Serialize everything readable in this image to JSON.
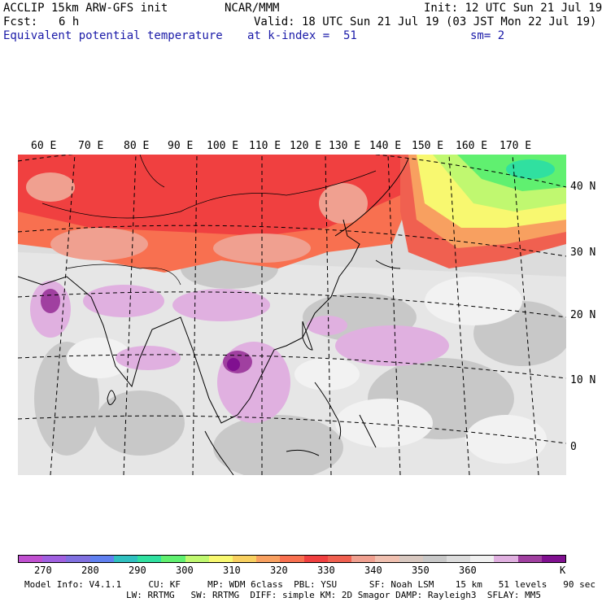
{
  "header": {
    "title_left": "ACCLIP 15km ARW-GFS init",
    "center": "NCAR/MMM",
    "init": "Init: 12 UTC Sun 21 Jul 19",
    "fcst_label": "Fcst:",
    "fcst_value": "6 h",
    "valid": "Valid: 18 UTC Sun 21 Jul 19 (03 JST Mon 22 Jul 19)",
    "field": "Equivalent potential temperature",
    "level": "at k-index =  51",
    "smooth": "sm= 2"
  },
  "map": {
    "longitude_labels": [
      "60 E",
      "70 E",
      "80 E",
      "90 E",
      "100 E",
      "110 E",
      "120 E",
      "130 E",
      "140 E",
      "150 E",
      "160 E",
      "170 E"
    ],
    "latitude_labels": [
      "40 N",
      "30 N",
      "20 N",
      "10 N",
      "0"
    ],
    "field_units": "K"
  },
  "colorbar": {
    "tick_labels": [
      "270",
      "280",
      "290",
      "300",
      "310",
      "320",
      "330",
      "340",
      "350",
      "360",
      "K"
    ],
    "colors": [
      "#c050d0",
      "#a060e0",
      "#8070e0",
      "#6080f0",
      "#30c0c0",
      "#30e0a0",
      "#60f070",
      "#c0f870",
      "#f8f870",
      "#f8d060",
      "#f8a060",
      "#f87050",
      "#f04040",
      "#f06050",
      "#f0a090",
      "#f0c0b0",
      "#d8c8c0",
      "#c8c8c8",
      "#dcdcdc",
      "#f0f0f0",
      "#e0b0e0",
      "#a040a0",
      "#801090"
    ]
  },
  "footer": {
    "line1": "Model Info: V4.1.1     CU: KF     MP: WDM 6class  PBL: YSU      SF: Noah LSM    15 km   51 levels   90 sec",
    "line2": "LW: RRTMG   SW: RRTMG  DIFF: simple KM: 2D Smagor DAMP: Rayleigh3  SFLAY: MM5"
  }
}
